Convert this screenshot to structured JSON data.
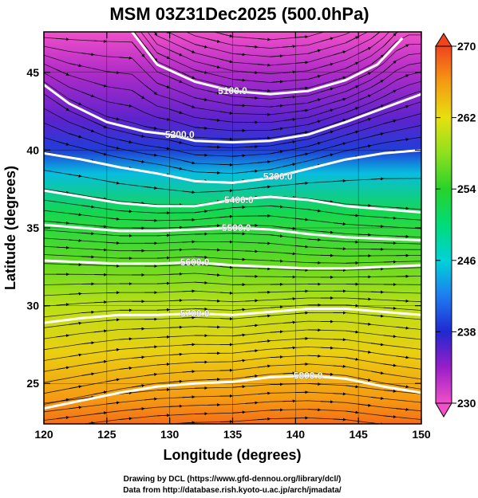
{
  "header": {
    "title": "MSM 03Z31Dec2025 (500.0hPa)"
  },
  "credits": {
    "line1": "Drawing by DCL (https://www.gfd-dennou.org/library/dcl/)",
    "line2": "Data from http://database.rish.kyoto-u.ac.jp/arch/jmadata/"
  },
  "chart_data": {
    "type": "heatmap",
    "title": "MSM 03Z31Dec2025 (500.0hPa)",
    "xlabel": "Longitude (degrees)",
    "ylabel": "Latitude  (degrees)",
    "xlim": [
      120,
      150
    ],
    "ylim": [
      22.4,
      47.6
    ],
    "xticks": [
      120,
      125,
      130,
      135,
      140,
      145,
      150
    ],
    "yticks": [
      25,
      30,
      35,
      40,
      45
    ],
    "colorbar": {
      "min": 230,
      "max": 270,
      "ticks": [
        230,
        238,
        246,
        254,
        262,
        270
      ],
      "stops": [
        {
          "v": 230,
          "c": "#f050c8"
        },
        {
          "v": 234,
          "c": "#9a1ec8"
        },
        {
          "v": 238,
          "c": "#2028d0"
        },
        {
          "v": 242,
          "c": "#1e7cf0"
        },
        {
          "v": 246,
          "c": "#00d2d8"
        },
        {
          "v": 250,
          "c": "#00dc78"
        },
        {
          "v": 254,
          "c": "#28d22a"
        },
        {
          "v": 258,
          "c": "#8ee01e"
        },
        {
          "v": 262,
          "c": "#e6e010"
        },
        {
          "v": 266,
          "c": "#f59a12"
        },
        {
          "v": 270,
          "c": "#f0441e"
        }
      ]
    },
    "temperature_field": [
      {
        "lat": 47.6,
        "temp": 230
      },
      {
        "lat": 45.0,
        "temp": 233
      },
      {
        "lat": 42.0,
        "temp": 236
      },
      {
        "lat": 40.0,
        "temp": 239
      },
      {
        "lat": 38.5,
        "temp": 245
      },
      {
        "lat": 36.0,
        "temp": 252
      },
      {
        "lat": 33.0,
        "temp": 256
      },
      {
        "lat": 30.0,
        "temp": 260
      },
      {
        "lat": 27.0,
        "temp": 263
      },
      {
        "lat": 24.0,
        "temp": 266
      },
      {
        "lat": 22.4,
        "temp": 268
      }
    ],
    "height_contours": [
      {
        "label": "5100.0",
        "label_pos": [
          135.0,
          43.8
        ],
        "points": [
          [
            127,
            47.6
          ],
          [
            129,
            45.5
          ],
          [
            132,
            44.4
          ],
          [
            135,
            43.8
          ],
          [
            138,
            43.6
          ],
          [
            141,
            43.8
          ],
          [
            144,
            44.5
          ],
          [
            146.5,
            45.5
          ],
          [
            148.5,
            47.2
          ]
        ]
      },
      {
        "label": "5200.0",
        "label_pos": [
          130.8,
          41.0
        ],
        "points": [
          [
            120,
            44.2
          ],
          [
            122,
            43.0
          ],
          [
            125,
            41.8
          ],
          [
            128,
            41.2
          ],
          [
            130,
            41.0
          ],
          [
            132,
            40.6
          ],
          [
            135,
            40.5
          ],
          [
            138,
            40.6
          ],
          [
            141,
            41.0
          ],
          [
            144,
            41.8
          ],
          [
            147,
            42.7
          ],
          [
            150,
            43.6
          ]
        ]
      },
      {
        "label": "5300.0",
        "label_pos": [
          138.6,
          38.3
        ],
        "points": [
          [
            120,
            39.8
          ],
          [
            123,
            39.4
          ],
          [
            126,
            38.9
          ],
          [
            129,
            38.5
          ],
          [
            132,
            38.0
          ],
          [
            135,
            37.9
          ],
          [
            138,
            38.2
          ],
          [
            141,
            38.8
          ],
          [
            144,
            39.4
          ],
          [
            147,
            39.8
          ],
          [
            150,
            40.0
          ]
        ]
      },
      {
        "label": "5400.0",
        "label_pos": [
          135.5,
          36.8
        ],
        "points": [
          [
            120,
            37.4
          ],
          [
            123,
            37.0
          ],
          [
            126,
            36.6
          ],
          [
            129,
            36.4
          ],
          [
            132,
            36.4
          ],
          [
            135,
            36.8
          ],
          [
            138,
            37.0
          ],
          [
            141,
            36.8
          ],
          [
            144,
            36.4
          ],
          [
            147,
            36.2
          ],
          [
            150,
            36.0
          ]
        ]
      },
      {
        "label": "5500.0",
        "label_pos": [
          135.3,
          35.0
        ],
        "points": [
          [
            120,
            35.2
          ],
          [
            123,
            35.0
          ],
          [
            126,
            34.8
          ],
          [
            129,
            34.8
          ],
          [
            132,
            34.9
          ],
          [
            135,
            35.0
          ],
          [
            138,
            34.9
          ],
          [
            141,
            34.6
          ],
          [
            144,
            34.4
          ],
          [
            147,
            34.3
          ],
          [
            150,
            34.2
          ]
        ]
      },
      {
        "label": "5600.0",
        "label_pos": [
          132.0,
          32.8
        ],
        "points": [
          [
            120,
            32.9
          ],
          [
            123,
            32.8
          ],
          [
            126,
            32.7
          ],
          [
            129,
            32.7
          ],
          [
            132,
            32.8
          ],
          [
            135,
            32.6
          ],
          [
            138,
            32.5
          ],
          [
            141,
            32.4
          ],
          [
            144,
            32.4
          ],
          [
            147,
            32.5
          ],
          [
            150,
            32.6
          ]
        ]
      },
      {
        "label": "5700.0",
        "label_pos": [
          132.0,
          29.5
        ],
        "points": [
          [
            120,
            28.9
          ],
          [
            123,
            29.2
          ],
          [
            126,
            29.4
          ],
          [
            129,
            29.4
          ],
          [
            132,
            29.5
          ],
          [
            135,
            29.4
          ],
          [
            138,
            29.6
          ],
          [
            141,
            29.8
          ],
          [
            144,
            29.8
          ],
          [
            147,
            29.6
          ],
          [
            150,
            29.4
          ]
        ]
      },
      {
        "label": "5800.0",
        "label_pos": [
          141.0,
          25.5
        ],
        "points": [
          [
            120,
            23.4
          ],
          [
            123,
            23.9
          ],
          [
            126,
            24.4
          ],
          [
            129,
            24.8
          ],
          [
            132,
            25.0
          ],
          [
            135,
            25.1
          ],
          [
            138,
            25.4
          ],
          [
            141,
            25.5
          ],
          [
            144,
            25.3
          ],
          [
            147,
            24.8
          ],
          [
            150,
            24.4
          ]
        ]
      }
    ]
  }
}
